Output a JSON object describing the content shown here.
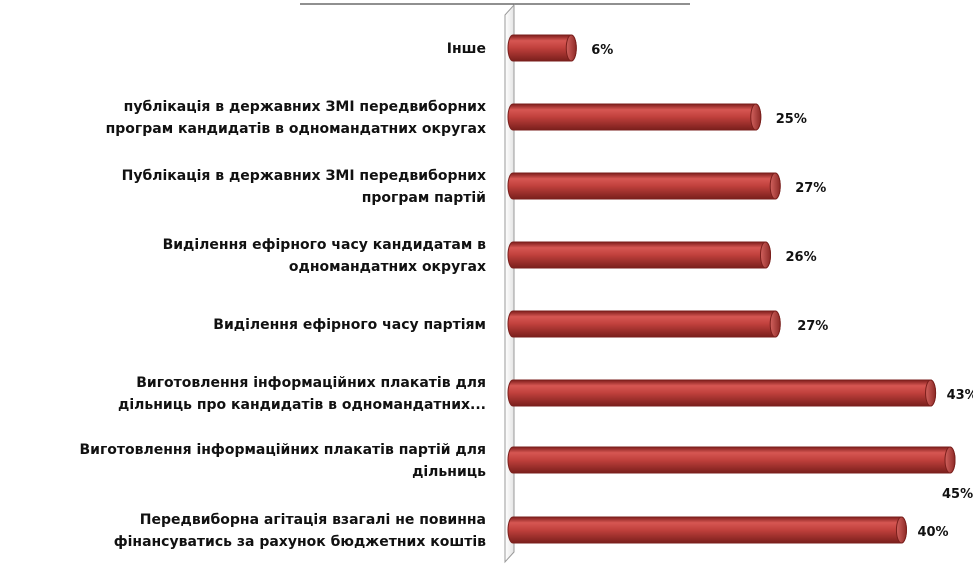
{
  "chart_data": {
    "type": "bar",
    "orientation": "horizontal",
    "categories": [
      [
        "Інше"
      ],
      [
        "публікація в державних ЗМІ передвиборних",
        "програм кандидатів в одномандатних округах"
      ],
      [
        "Публікація в державних ЗМІ передвиборних",
        "програм партій"
      ],
      [
        "Виділення ефірного часу кандидатам в",
        "одномандатних округах"
      ],
      [
        "Виділення ефірного часу партіям"
      ],
      [
        "Виготовлення інформаційних плакатів для",
        "дільниць про кандидатів в одномандатних..."
      ],
      [
        "Виготовлення інформаційних плакатів партій для",
        "дільниць"
      ],
      [
        "Передвиборна агітація взагалі не повинна",
        "фінансуватись за рахунок бюджетних коштів"
      ]
    ],
    "values": [
      6,
      25,
      27,
      26,
      27,
      43,
      45,
      40
    ],
    "value_labels": [
      "6%",
      "25%",
      "27%",
      "26%",
      "27%",
      "43%",
      "45%",
      "40%"
    ],
    "xlim": [
      0,
      45
    ],
    "grid": false,
    "legend": "none",
    "bar_color": "#c0403c",
    "bar_edge_color": "#7a1f1c"
  }
}
